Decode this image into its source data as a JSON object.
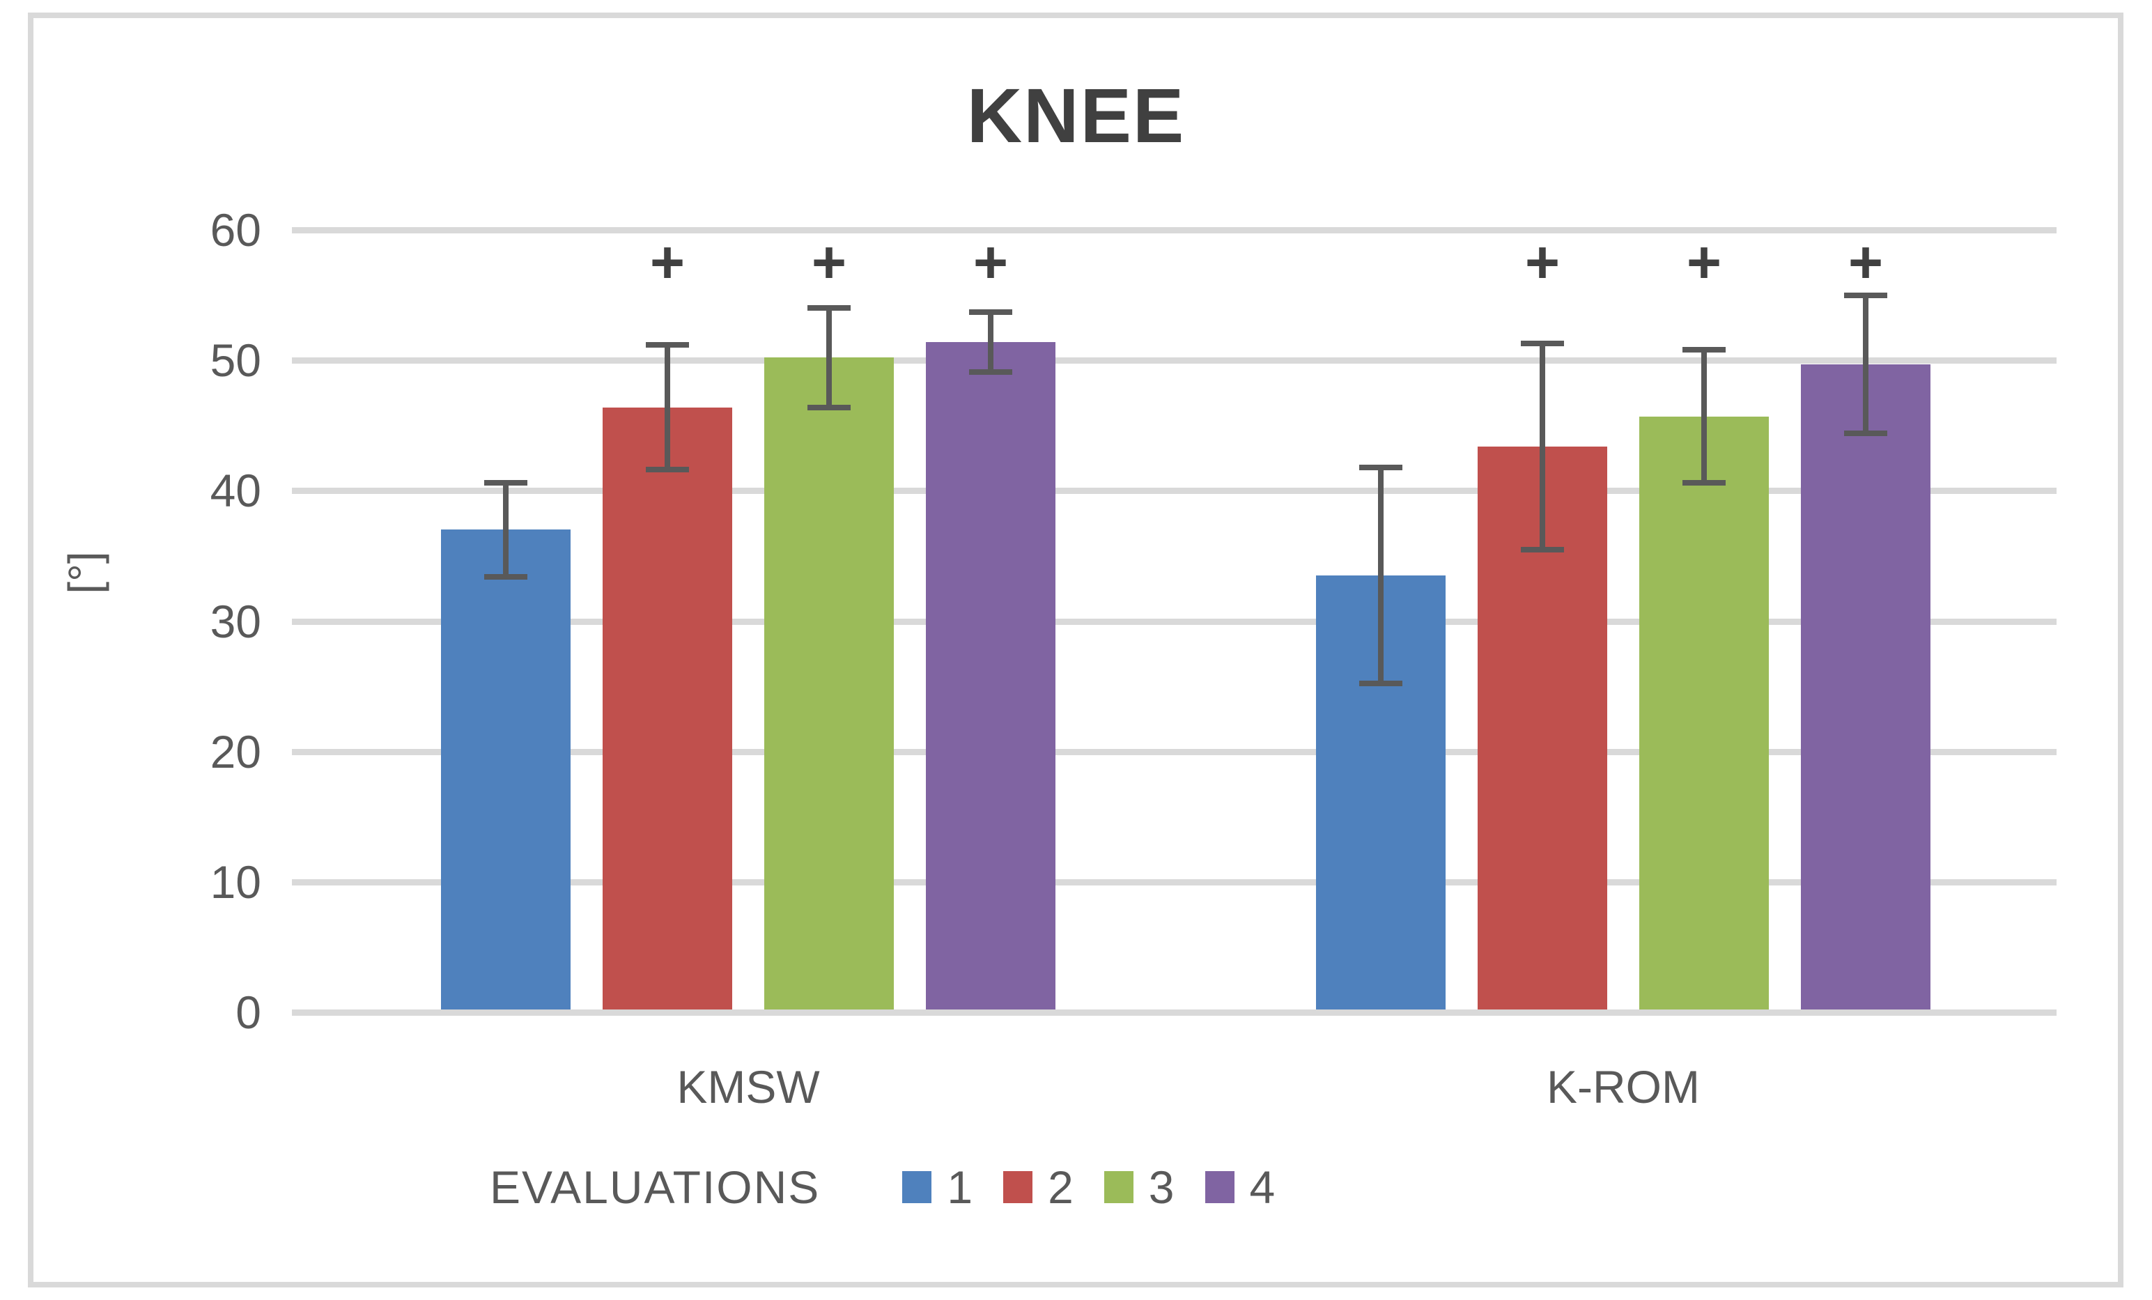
{
  "title": "KNEE",
  "chart_data": {
    "type": "bar",
    "title": "KNEE",
    "xlabel": "",
    "ylabel": "[°]",
    "ylim": [
      0,
      60
    ],
    "yticks": [
      0,
      10,
      20,
      30,
      40,
      50,
      60
    ],
    "grid": true,
    "categories": [
      "KMSW",
      "K-ROM"
    ],
    "series": [
      {
        "name": "1",
        "color": "#4F81BD",
        "values": [
          37.0,
          33.5
        ],
        "errors": [
          3.6,
          8.3
        ],
        "significance": [
          "",
          ""
        ]
      },
      {
        "name": "2",
        "color": "#C0504D",
        "values": [
          46.4,
          43.4
        ],
        "errors": [
          4.8,
          7.9
        ],
        "significance": [
          "+",
          "+"
        ]
      },
      {
        "name": "3",
        "color": "#9BBB59",
        "values": [
          50.2,
          45.7
        ],
        "errors": [
          3.8,
          5.1
        ],
        "significance": [
          "+",
          "+"
        ]
      },
      {
        "name": "4",
        "color": "#8064A2",
        "values": [
          51.4,
          49.7
        ],
        "errors": [
          2.3,
          5.3
        ],
        "significance": [
          "+",
          "+"
        ]
      }
    ],
    "legend": {
      "title": "EVALUATIONS",
      "entries": [
        "1",
        "2",
        "3",
        "4"
      ],
      "position": "bottom"
    },
    "annotation_symbol": "+",
    "colors": {
      "grid": "#D9D9D9",
      "axis_text": "#595959",
      "error_bar": "#595959",
      "title_text": "#404040",
      "border": "#D9D9D9"
    }
  }
}
